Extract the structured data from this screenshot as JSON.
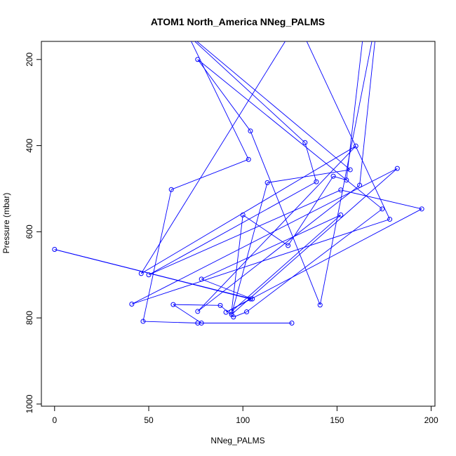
{
  "chart_data": {
    "type": "line",
    "title": "ATOM1 North_America NNeg_PALMS",
    "xlabel": "NNeg_PALMS",
    "ylabel": "Pressure (mbar)",
    "xlim": [
      -7,
      202
    ],
    "ylim": [
      1005,
      158
    ],
    "y_reversed": true,
    "grid": false,
    "xticks": [
      0,
      50,
      100,
      150,
      200
    ],
    "yticks": [
      200,
      400,
      600,
      800,
      1000
    ],
    "color": "#0000ff",
    "series": [
      {
        "points": [
          [
            65,
            90
          ],
          [
            103,
            432
          ],
          [
            62,
            502
          ],
          [
            47,
            808
          ],
          [
            76,
            812
          ],
          [
            126,
            812
          ],
          [
            78,
            812
          ],
          [
            63,
            769
          ],
          [
            88,
            771
          ],
          [
            95,
            798
          ],
          [
            102,
            786
          ],
          [
            174,
            547
          ],
          [
            76,
            200
          ],
          [
            104,
            366
          ],
          [
            141,
            770
          ],
          [
            172,
            80
          ],
          [
            162,
            492
          ],
          [
            76,
            785
          ],
          [
            160,
            401
          ],
          [
            46,
            697
          ],
          [
            129,
            112
          ],
          [
            178,
            571
          ],
          [
            41,
            768
          ],
          [
            182,
            453
          ],
          [
            94,
            792
          ],
          [
            113,
            486
          ],
          [
            157,
            456
          ],
          [
            63,
            112
          ],
          [
            133,
            393
          ],
          [
            139,
            484
          ],
          [
            50,
            700
          ],
          [
            152,
            503
          ],
          [
            195,
            547
          ],
          [
            91,
            787
          ],
          [
            104,
            756
          ],
          [
            0,
            641
          ],
          [
            105,
            756
          ],
          [
            78,
            710
          ],
          [
            152,
            561
          ],
          [
            94,
            785
          ],
          [
            100,
            561
          ],
          [
            124,
            632
          ],
          [
            148,
            471
          ],
          [
            155,
            480
          ],
          [
            165,
            100
          ]
        ]
      }
    ]
  }
}
